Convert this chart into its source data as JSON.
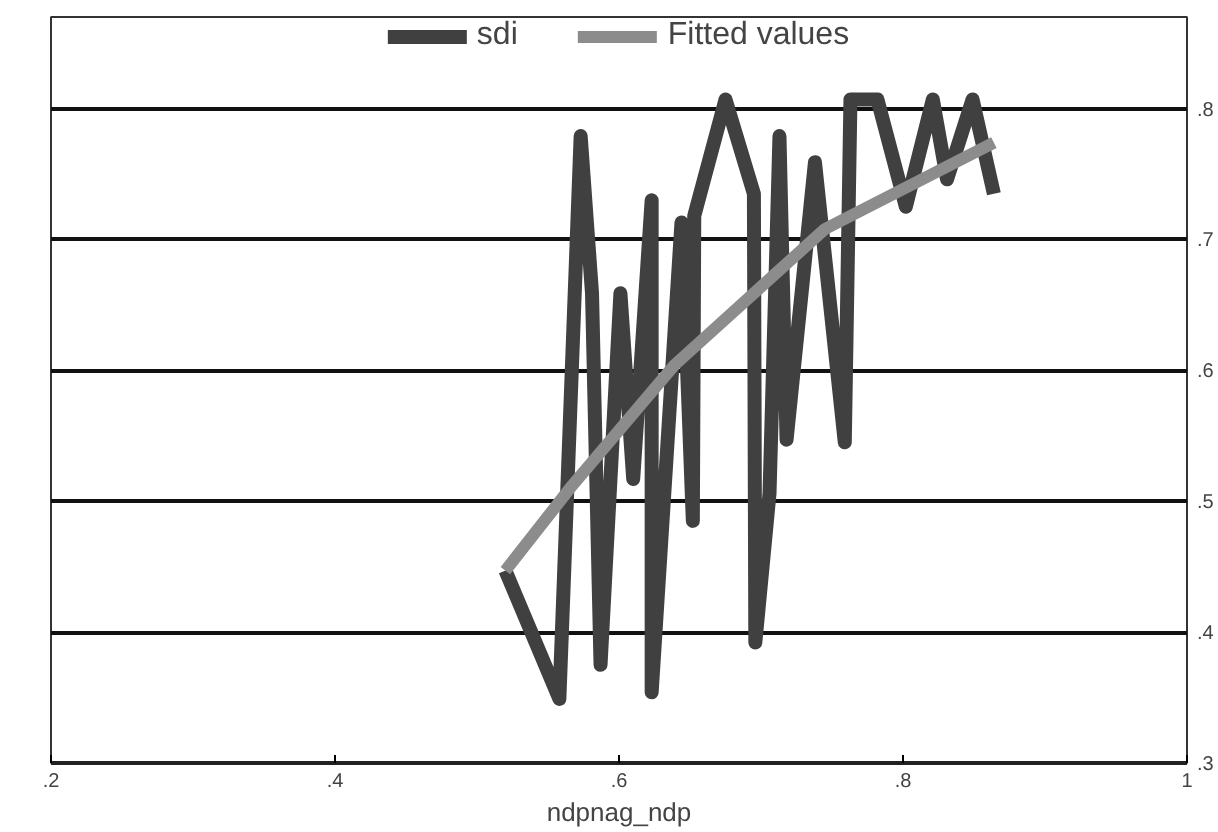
{
  "chart_data": {
    "type": "line",
    "xlabel": "ndpnag_ndp",
    "xlim": [
      0.2,
      1.0
    ],
    "ylim": [
      0.3,
      0.87
    ],
    "xticks": [
      {
        "value": 0.2,
        "label": ".2"
      },
      {
        "value": 0.4,
        "label": ".4"
      },
      {
        "value": 0.6,
        "label": ".6"
      },
      {
        "value": 0.8,
        "label": ".8"
      },
      {
        "value": 1,
        "label": "1"
      }
    ],
    "yticks": [
      {
        "value": 0.3,
        "label": ".3"
      },
      {
        "value": 0.4,
        "label": ".4"
      },
      {
        "value": 0.5,
        "label": ".5"
      },
      {
        "value": 0.6,
        "label": ".6"
      },
      {
        "value": 0.7,
        "label": ".7"
      },
      {
        "value": 0.8,
        "label": ".8"
      }
    ],
    "grid": "y",
    "legend": "top",
    "marker": "none",
    "line_style": "solid",
    "series": [
      {
        "name": "sdi",
        "color": "#404040",
        "x": [
          0.52,
          0.558,
          0.573,
          0.581,
          0.587,
          0.601,
          0.61,
          0.623,
          0.623,
          0.644,
          0.652,
          0.653,
          0.675,
          0.695,
          0.696,
          0.706,
          0.713,
          0.718,
          0.738,
          0.759,
          0.763,
          0.782,
          0.802,
          0.821,
          0.831,
          0.849,
          0.864
        ],
        "values": [
          0.447,
          0.349,
          0.779,
          0.659,
          0.375,
          0.659,
          0.517,
          0.73,
          0.354,
          0.713,
          0.485,
          0.718,
          0.807,
          0.735,
          0.392,
          0.506,
          0.779,
          0.547,
          0.759,
          0.545,
          0.807,
          0.807,
          0.725,
          0.807,
          0.746,
          0.807,
          0.735
        ]
      },
      {
        "name": "Fitted values",
        "color": "#8c8c8c",
        "x": [
          0.52,
          0.567,
          0.639,
          0.745,
          0.864
        ],
        "values": [
          0.447,
          0.512,
          0.604,
          0.708,
          0.774
        ]
      }
    ]
  }
}
